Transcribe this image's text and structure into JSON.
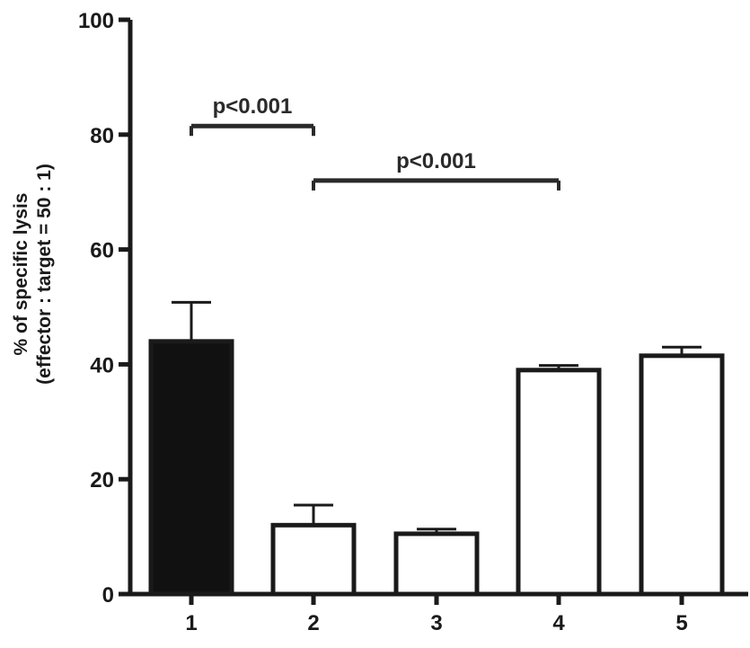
{
  "chart_data": {
    "type": "bar",
    "categories": [
      "1",
      "2",
      "3",
      "4",
      "5"
    ],
    "values": [
      44,
      12,
      10.5,
      39,
      41.5
    ],
    "errors": [
      6.8,
      3.5,
      0.8,
      0.8,
      1.5
    ],
    "fills": [
      "#111111",
      "#ffffff",
      "#ffffff",
      "#ffffff",
      "#ffffff"
    ],
    "ylabel_line1": "% of specific lysis",
    "ylabel_line2": "(effector : target = 50 : 1)",
    "ylim": [
      0,
      100
    ],
    "yticks": [
      0,
      20,
      40,
      60,
      80,
      100
    ],
    "grid": false,
    "annotations": [
      {
        "text": "p<0.001",
        "from": 0,
        "to": 1,
        "y": 81.5
      },
      {
        "text": "p<0.001",
        "from": 1,
        "to": 3,
        "y": 72
      }
    ]
  }
}
